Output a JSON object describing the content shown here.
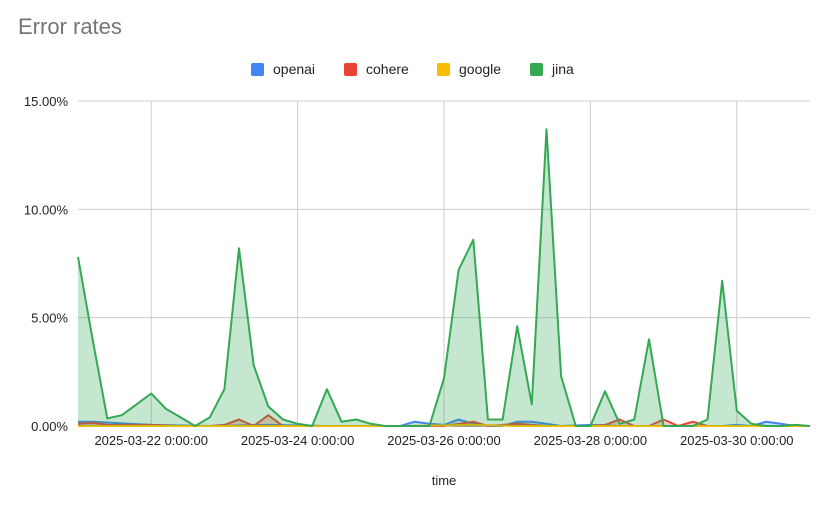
{
  "chart_data": {
    "type": "area",
    "title": "Error rates",
    "xlabel": "time",
    "ylabel": "",
    "ylim": [
      0,
      15
    ],
    "y_ticks": [
      {
        "value": 0,
        "label": "0.00%"
      },
      {
        "value": 5,
        "label": "5.00%"
      },
      {
        "value": 10,
        "label": "10.00%"
      },
      {
        "value": 15,
        "label": "15.00%"
      }
    ],
    "x_start": "2025-03-21 12:00",
    "x_end": "2025-03-31 12:00",
    "x_ticks": [
      {
        "day": 1,
        "label": "2025-03-22 0:00:00"
      },
      {
        "day": 3,
        "label": "2025-03-24 0:00:00"
      },
      {
        "day": 5,
        "label": "2025-03-26 0:00:00"
      },
      {
        "day": 7,
        "label": "2025-03-28 0:00:00"
      },
      {
        "day": 9,
        "label": "2025-03-30 0:00:00"
      }
    ],
    "legend_position": "top",
    "grid": true,
    "series": [
      {
        "name": "openai",
        "color": "#4285f4",
        "points": [
          [
            0,
            0.2
          ],
          [
            0.2,
            0.2
          ],
          [
            1.0,
            0.05
          ],
          [
            1.8,
            0.0
          ],
          [
            2.6,
            0.05
          ],
          [
            3.4,
            0.0
          ],
          [
            3.8,
            0.0
          ],
          [
            4.2,
            0.0
          ],
          [
            4.4,
            0.0
          ],
          [
            4.6,
            0.2
          ],
          [
            4.8,
            0.1
          ],
          [
            5.0,
            0.05
          ],
          [
            5.2,
            0.3
          ],
          [
            5.4,
            0.1
          ],
          [
            5.6,
            0.0
          ],
          [
            5.8,
            0.0
          ],
          [
            6.0,
            0.2
          ],
          [
            6.2,
            0.2
          ],
          [
            6.4,
            0.1
          ],
          [
            6.6,
            0.0
          ],
          [
            7.0,
            0.05
          ],
          [
            7.4,
            0.0
          ],
          [
            7.8,
            0.0
          ],
          [
            8.2,
            0.0
          ],
          [
            8.6,
            0.0
          ],
          [
            8.8,
            0.0
          ],
          [
            9.0,
            0.05
          ],
          [
            9.2,
            0.0
          ],
          [
            9.4,
            0.2
          ],
          [
            9.6,
            0.1
          ],
          [
            9.8,
            0.0
          ],
          [
            10,
            0.0
          ]
        ]
      },
      {
        "name": "cohere",
        "color": "#ea4335",
        "points": [
          [
            0,
            0.1
          ],
          [
            0.2,
            0.15
          ],
          [
            0.4,
            0.05
          ],
          [
            1.0,
            0.05
          ],
          [
            1.4,
            0.0
          ],
          [
            1.8,
            0.0
          ],
          [
            2.0,
            0.05
          ],
          [
            2.2,
            0.3
          ],
          [
            2.4,
            0.0
          ],
          [
            2.6,
            0.5
          ],
          [
            2.8,
            0.0
          ],
          [
            3.2,
            0.0
          ],
          [
            3.4,
            0.0
          ],
          [
            4.4,
            0.0
          ],
          [
            4.6,
            0.0
          ],
          [
            5.0,
            0.0
          ],
          [
            5.4,
            0.2
          ],
          [
            5.6,
            0.0
          ],
          [
            6.0,
            0.1
          ],
          [
            6.4,
            0.0
          ],
          [
            6.6,
            0.0
          ],
          [
            6.8,
            0.0
          ],
          [
            7.0,
            0.0
          ],
          [
            7.2,
            0.05
          ],
          [
            7.4,
            0.3
          ],
          [
            7.6,
            0.0
          ],
          [
            7.8,
            0.0
          ],
          [
            8.0,
            0.3
          ],
          [
            8.2,
            0.0
          ],
          [
            8.4,
            0.2
          ],
          [
            8.6,
            0.0
          ],
          [
            9.0,
            0.0
          ],
          [
            10,
            0.0
          ]
        ]
      },
      {
        "name": "google",
        "color": "#fbbc04",
        "points": [
          [
            0,
            0.0
          ],
          [
            3.4,
            0.0
          ],
          [
            4.4,
            0.0
          ],
          [
            5.4,
            0.05
          ],
          [
            6.0,
            0.0
          ],
          [
            7.8,
            0.0
          ],
          [
            8.6,
            0.0
          ],
          [
            9.0,
            0.0
          ],
          [
            10,
            0.0
          ]
        ]
      },
      {
        "name": "jina",
        "color": "#34a853",
        "points": [
          [
            0.0,
            7.8
          ],
          [
            0.2,
            4.0
          ],
          [
            0.4,
            0.35
          ],
          [
            0.6,
            0.5
          ],
          [
            0.8,
            1.0
          ],
          [
            1.0,
            1.5
          ],
          [
            1.2,
            0.8
          ],
          [
            1.4,
            0.4
          ],
          [
            1.6,
            0.0
          ],
          [
            1.8,
            0.4
          ],
          [
            2.0,
            1.7
          ],
          [
            2.2,
            8.2
          ],
          [
            2.4,
            2.8
          ],
          [
            2.6,
            0.9
          ],
          [
            2.8,
            0.3
          ],
          [
            3.0,
            0.1
          ],
          [
            3.2,
            0.0
          ],
          [
            3.4,
            1.7
          ],
          [
            3.6,
            0.2
          ],
          [
            3.8,
            0.3
          ],
          [
            4.0,
            0.1
          ],
          [
            4.2,
            0.0
          ],
          [
            4.4,
            0.0
          ],
          [
            4.6,
            0.0
          ],
          [
            4.8,
            0.0
          ],
          [
            5.0,
            2.2
          ],
          [
            5.2,
            7.2
          ],
          [
            5.4,
            8.6
          ],
          [
            5.6,
            0.3
          ],
          [
            5.8,
            0.3
          ],
          [
            6.0,
            4.6
          ],
          [
            6.2,
            1.0
          ],
          [
            6.4,
            13.7
          ],
          [
            6.6,
            2.3
          ],
          [
            6.8,
            0.0
          ],
          [
            7.0,
            0.0
          ],
          [
            7.2,
            1.6
          ],
          [
            7.4,
            0.1
          ],
          [
            7.6,
            0.3
          ],
          [
            7.8,
            4.0
          ],
          [
            8.0,
            0.0
          ],
          [
            8.2,
            0.0
          ],
          [
            8.4,
            0.0
          ],
          [
            8.6,
            0.3
          ],
          [
            8.8,
            6.7
          ],
          [
            9.0,
            0.7
          ],
          [
            9.2,
            0.1
          ],
          [
            9.4,
            0.0
          ],
          [
            9.6,
            0.0
          ],
          [
            9.8,
            0.05
          ],
          [
            10.0,
            0.0
          ]
        ]
      }
    ]
  }
}
